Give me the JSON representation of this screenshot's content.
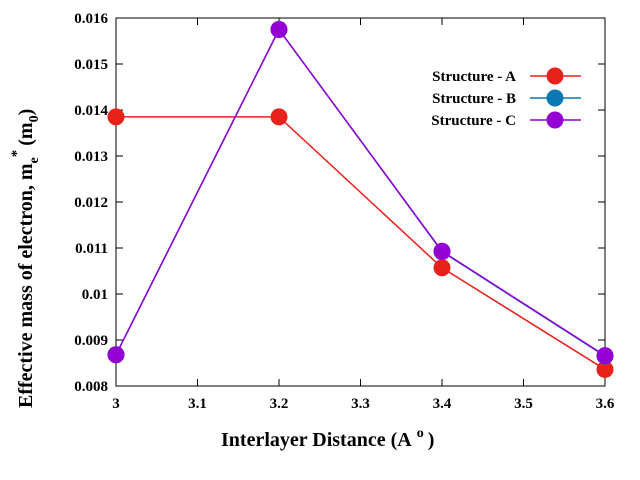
{
  "chart_data": {
    "type": "line",
    "title": "",
    "xlabel": "Interlayer Distance (A",
    "xlabel_sup": "o",
    "xlabel_tail": ")",
    "ylabel": "Effective mass of electron, m",
    "ylabel_sub": "e",
    "ylabel_sup": "*",
    "ylabel_tail_open": "(m",
    "ylabel_tail_sub": "0",
    "ylabel_tail_close": ")",
    "xlim": [
      3,
      3.6
    ],
    "ylim": [
      0.008,
      0.016
    ],
    "xticks": [
      "3",
      "3.1",
      "3.2",
      "3.3",
      "3.4",
      "3.5",
      "3.6"
    ],
    "yticks": [
      "0.008",
      "0.009",
      "0.01",
      "0.011",
      "0.012",
      "0.013",
      "0.014",
      "0.015",
      "0.016"
    ],
    "x": [
      3.0,
      3.2,
      3.4,
      3.6
    ],
    "grid": false,
    "legend_position": "top-right",
    "series": [
      {
        "name": "Structure - A",
        "color": "#e8221b",
        "values": [
          0.01385,
          0.01385,
          0.01057,
          0.00836
        ]
      },
      {
        "name": "Structure - B",
        "color": "#0b78b4",
        "values": [
          0.00868,
          0.01575,
          0.01092,
          0.00865
        ]
      },
      {
        "name": "Structure - C",
        "color": "#9400d3",
        "values": [
          0.00868,
          0.01575,
          0.01093,
          0.00866
        ]
      }
    ]
  }
}
